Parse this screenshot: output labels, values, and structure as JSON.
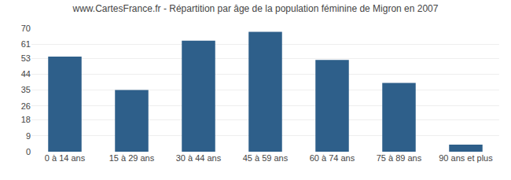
{
  "chart_data": {
    "type": "bar",
    "title": "www.CartesFrance.fr - Répartition par âge de la population féminine de Migron en 2007",
    "categories": [
      "0 à 14 ans",
      "15 à 29 ans",
      "30 à 44 ans",
      "45 à 59 ans",
      "60 à 74 ans",
      "75 à 89 ans",
      "90 ans et plus"
    ],
    "values": [
      54,
      35,
      63,
      68,
      52,
      39,
      4
    ],
    "color": "#2e5f8a",
    "ylim": [
      0,
      70
    ],
    "yticks": [
      0,
      9,
      18,
      26,
      35,
      44,
      53,
      61,
      70
    ],
    "grid": true
  }
}
